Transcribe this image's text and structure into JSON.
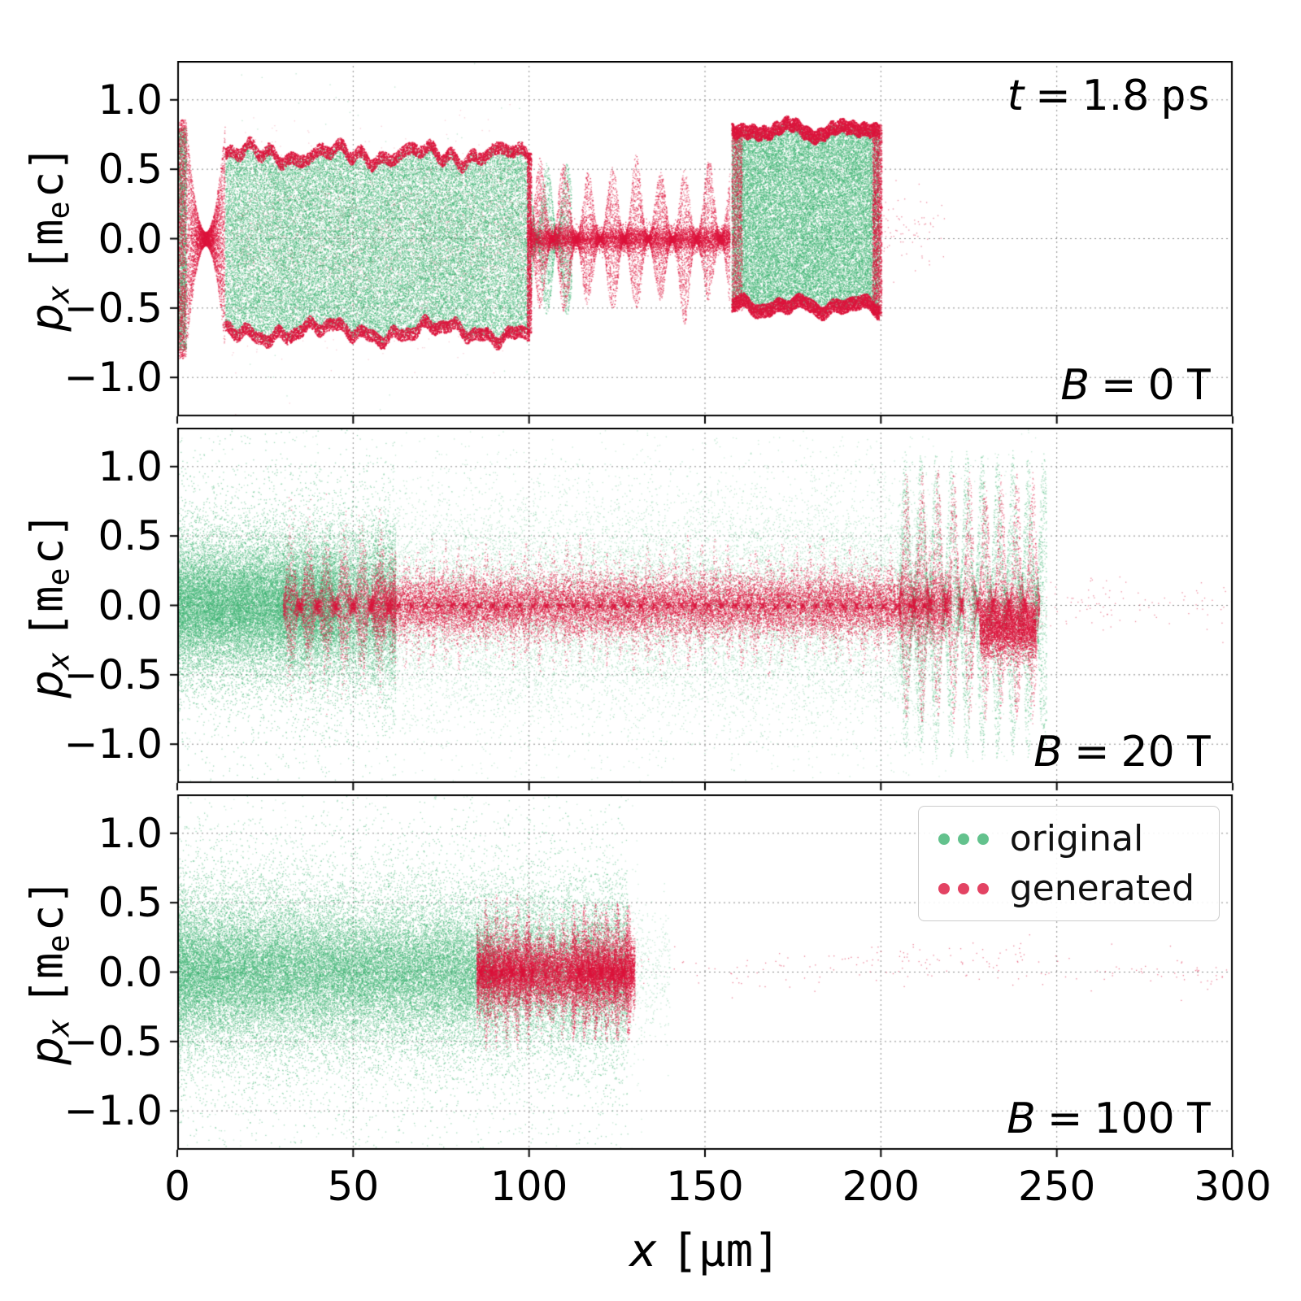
{
  "chart_data": {
    "type": "scatter",
    "description": "Phase-space particle scatter plots (x vs p_x) comparing original and generated distributions for three magnetic field strengths",
    "xlabel": {
      "v": "x",
      "u": "[μm]"
    },
    "ylabel": {
      "v": "p",
      "vsub": "x",
      "u1": "[m",
      "usub": "e",
      "u2": "c]"
    },
    "xlim": [
      0,
      300
    ],
    "ylim": [
      -1.28,
      1.28
    ],
    "x_ticks": [
      0,
      50,
      100,
      150,
      200,
      250,
      300
    ],
    "x_tick_labels": [
      "0",
      "50",
      "100",
      "150",
      "200",
      "250",
      "300"
    ],
    "y_ticks": [
      1.0,
      0.5,
      0.0,
      -0.5,
      -1.0
    ],
    "y_tick_labels": [
      "1.0",
      "0.5",
      "0.0",
      "−0.5",
      "−1.0"
    ],
    "grid": true,
    "annotation": {
      "var": "t",
      "eq": "=",
      "val": "1.8",
      "unit": "ps"
    },
    "series_colors": {
      "original": "#3cb371",
      "generated": "#dc143c"
    },
    "legend": {
      "position": "upper-right-panel-3",
      "entries": [
        {
          "label": "original",
          "color": "#3cb371"
        },
        {
          "label": "generated",
          "color": "#dc143c"
        }
      ]
    },
    "panels": [
      {
        "id": "B0",
        "label": {
          "var": "B",
          "eq": "=",
          "val": "0",
          "unit": "T"
        },
        "regions": [
          {
            "s": "o",
            "m": "fill",
            "x": [
              0,
              2.5
            ],
            "top": 0.8,
            "bot": -0.8,
            "n": 2200,
            "a": 0.65
          },
          {
            "s": "g",
            "m": "fill",
            "x": [
              0,
              2.2
            ],
            "top": 0.86,
            "bot": -0.86,
            "n": 1600,
            "a": 0.6
          },
          {
            "s": "g",
            "m": "pinch",
            "x": [
              2.2,
              13.5
            ],
            "xc": 8,
            "xs": 5.6,
            "c0": 0.05,
            "c2": 0.8,
            "amax": 0.85,
            "n": 4500,
            "a": 0.6
          },
          {
            "s": "o",
            "m": "fill",
            "x": [
              13.5,
              100
            ],
            "top": 0.62,
            "bot": -0.68,
            "wig": 0.09,
            "ns": 11,
            "n": 40000,
            "a": 0.55
          },
          {
            "s": "g",
            "m": "edge",
            "x": [
              13.5,
              100
            ],
            "top": 0.62,
            "bot": -0.68,
            "wig": 0.09,
            "ns": 11,
            "ew": 0.09,
            "n": 10000,
            "a": 0.8,
            "r": 1.5
          },
          {
            "s": "g",
            "m": "gauss",
            "x": [
              15,
              100
            ],
            "sig": 0.32,
            "n": 2200,
            "a": 0.22
          },
          {
            "s": "o",
            "m": "gauss",
            "x": [
              15,
              100
            ],
            "sig": 0.75,
            "n": 130,
            "a": 0.35
          },
          {
            "s": "g",
            "m": "fill",
            "x": [
              99.3,
              100.6
            ],
            "top": 0.62,
            "bot": -0.68,
            "n": 1500,
            "a": 0.7
          },
          {
            "s": "o",
            "m": "fill",
            "x": [
              100.5,
              112
            ],
            "top": 0.55,
            "bot": -0.55,
            "mod": {
              "f": 0.55,
              "p": 0.4,
              "min": 0.05,
              "pw": 1.6
            },
            "n": 2600,
            "a": 0.5
          },
          {
            "s": "g",
            "m": "gauss",
            "x": [
              100,
              157
            ],
            "sig": 0.045,
            "n": 5500,
            "a": 0.7
          },
          {
            "s": "g",
            "m": "fill",
            "x": [
              100,
              157
            ],
            "top": 0.5,
            "bot": -0.5,
            "wig": 0.12,
            "ns": 23,
            "mod": {
              "f": 0.46,
              "p": 1.3,
              "min": 0.05,
              "pw": 2.2
            },
            "n": 12000,
            "a": 0.55
          },
          {
            "s": "o",
            "m": "fill",
            "x": [
              157.5,
              199.5
            ],
            "top": 0.8,
            "bot": -0.5,
            "wig": 0.06,
            "ns": 31,
            "n": 30000,
            "a": 0.55
          },
          {
            "s": "g",
            "m": "edge",
            "x": [
              157.5,
              199.5
            ],
            "top": 0.8,
            "bot": -0.5,
            "wig": 0.06,
            "ns": 31,
            "ew": 0.1,
            "n": 9000,
            "a": 0.8,
            "r": 1.5
          },
          {
            "s": "g",
            "m": "fill",
            "x": [
              157.5,
              160.5
            ],
            "top": 0.8,
            "bot": -0.52,
            "n": 1600,
            "a": 0.6
          },
          {
            "s": "g",
            "m": "fill",
            "x": [
              197.5,
              200.2
            ],
            "top": 0.83,
            "bot": -0.56,
            "n": 2200,
            "a": 0.65
          },
          {
            "s": "g",
            "m": "gauss",
            "x": [
              200,
              218
            ],
            "sig": 0.16,
            "cy": 0.06,
            "n": 70,
            "a": 0.5
          }
        ]
      },
      {
        "id": "B20",
        "label": {
          "var": "B",
          "eq": "=",
          "val": "20",
          "unit": "T"
        },
        "regions": [
          {
            "s": "o",
            "m": "gauss",
            "x": [
              0,
              62
            ],
            "sig": 0.28,
            "tail": 0.15,
            "tsig": 0.55,
            "n": 24000,
            "a": 0.5
          },
          {
            "s": "o",
            "m": "gauss",
            "x": [
              0,
              45
            ],
            "sig": 0.17,
            "n": 9000,
            "a": 0.5
          },
          {
            "s": "o",
            "m": "gauss",
            "x": [
              60,
              215
            ],
            "sig": 0.38,
            "tail": 0.12,
            "tsig": 0.62,
            "n": 16000,
            "a": 0.32
          },
          {
            "s": "o",
            "m": "gauss",
            "x": [
              0,
              245
            ],
            "sig": 0.92,
            "n": 1600,
            "a": 0.28
          },
          {
            "s": "o",
            "m": "fill",
            "x": [
              205,
              247
            ],
            "top": 1.12,
            "bot": -1.12,
            "mod": {
              "f": 0.72,
              "p": 0.3,
              "min": 0.12,
              "pw": 1.9
            },
            "n": 9000,
            "a": 0.45
          },
          {
            "s": "g",
            "m": "gauss",
            "x": [
              30,
              62
            ],
            "sig": 0.27,
            "mod": {
              "f": 0.62,
              "p": 0.5,
              "min": 0.1,
              "pw": 2.4
            },
            "n": 6500,
            "a": 0.5
          },
          {
            "s": "g",
            "m": "gauss",
            "x": [
              55,
              220
            ],
            "sig": 0.11,
            "n": 21000,
            "a": 0.6
          },
          {
            "s": "g",
            "m": "fill",
            "x": [
              60,
              215
            ],
            "top": 0.46,
            "bot": -0.46,
            "wig": 0.1,
            "ns": 41,
            "mod": {
              "f": 0.82,
              "p": 2.0,
              "min": 0.03,
              "pw": 3.2
            },
            "n": 9500,
            "a": 0.5
          },
          {
            "s": "g",
            "m": "fill",
            "x": [
              205,
              245
            ],
            "top": 0.98,
            "bot": -0.85,
            "mod": {
              "f": 0.7,
              "p": 1.1,
              "min": 0.05,
              "pw": 2.4
            },
            "n": 7000,
            "a": 0.5
          },
          {
            "s": "g",
            "m": "gauss",
            "x": [
              228,
              244
            ],
            "sig": 0.11,
            "cy": -0.15,
            "n": 4500,
            "a": 0.7
          },
          {
            "s": "g",
            "m": "gauss",
            "x": [
              245,
              300
            ],
            "sig": 0.11,
            "cy": 0.02,
            "n": 90,
            "a": 0.5
          }
        ]
      },
      {
        "id": "B100",
        "label": {
          "var": "B",
          "eq": "=",
          "val": "100",
          "unit": "T"
        },
        "regions": [
          {
            "s": "o",
            "m": "gauss",
            "x": [
              0,
              128
            ],
            "sig": 0.3,
            "tail": 0.14,
            "tsig": 0.62,
            "pw": 1.15,
            "n": 38000,
            "a": 0.5
          },
          {
            "s": "o",
            "m": "gauss",
            "x": [
              0,
              90
            ],
            "sig": 0.17,
            "n": 11000,
            "a": 0.5
          },
          {
            "s": "o",
            "m": "gauss",
            "x": [
              124,
              140
            ],
            "sig": 0.24,
            "n": 500,
            "a": 0.3
          },
          {
            "s": "o",
            "m": "gauss",
            "x": [
              0,
              132
            ],
            "sig": 0.88,
            "n": 1300,
            "a": 0.28
          },
          {
            "s": "g",
            "m": "gauss",
            "x": [
              85,
              130
            ],
            "sig": 0.16,
            "mod": {
              "f": 0.9,
              "p": 0.2,
              "min": 0.5,
              "pw": 1.2
            },
            "n": 15000,
            "a": 0.6
          },
          {
            "s": "g",
            "m": "fill",
            "x": [
              85,
              101
            ],
            "top": 0.56,
            "bot": -0.56,
            "mod": {
              "f": 1.05,
              "p": 0.7,
              "min": 0.04,
              "pw": 3.0
            },
            "n": 3200,
            "a": 0.5
          },
          {
            "s": "g",
            "m": "fill",
            "x": [
              112,
              129
            ],
            "top": 0.5,
            "bot": -0.5,
            "mod": {
              "f": 1.0,
              "p": 2.2,
              "min": 0.05,
              "pw": 2.4
            },
            "n": 4200,
            "a": 0.55
          },
          {
            "s": "g",
            "m": "gauss",
            "x": [
              130,
              300
            ],
            "sig": 0.07,
            "cy": 0.02,
            "n": 120,
            "a": 0.55
          },
          {
            "s": "g",
            "m": "gauss",
            "x": [
              190,
              240
            ],
            "sig": 0.05,
            "cy": 0.1,
            "n": 55,
            "a": 0.55
          },
          {
            "s": "g",
            "m": "gauss",
            "x": [
              275,
              298
            ],
            "sig": 0.05,
            "cy": -0.03,
            "n": 14,
            "a": 0.55
          }
        ]
      }
    ]
  }
}
